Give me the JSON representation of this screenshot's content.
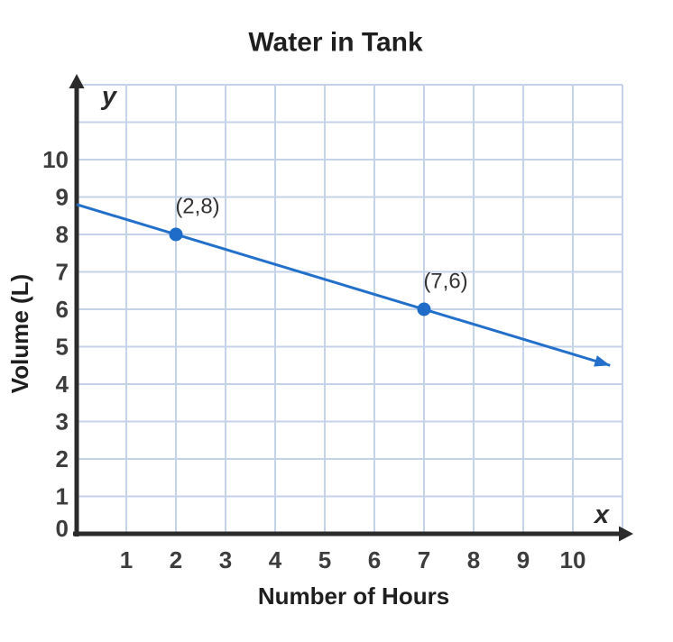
{
  "chart_data": {
    "type": "line",
    "title": "Water in Tank",
    "xlabel": "Number of Hours",
    "ylabel": "Volume (L)",
    "x_axis_letter": "x",
    "y_axis_letter": "y",
    "xlim": [
      0,
      11
    ],
    "ylim": [
      0,
      12
    ],
    "x_ticks": [
      1,
      2,
      3,
      4,
      5,
      6,
      7,
      8,
      9,
      10
    ],
    "y_ticks": [
      0,
      1,
      2,
      3,
      4,
      5,
      6,
      7,
      8,
      9,
      10
    ],
    "grid": true,
    "legend": "none",
    "line": {
      "start": [
        0,
        8.8
      ],
      "end": [
        10.75,
        4.5
      ],
      "slope": -0.4,
      "y_intercept": 8.8,
      "arrow_end": true
    },
    "points": [
      {
        "x": 2,
        "y": 8,
        "label": "(2,8)"
      },
      {
        "x": 7,
        "y": 6,
        "label": "(7,6)"
      }
    ],
    "colors": {
      "line": "#2270c9",
      "point": "#1e6bc8",
      "grid": "#c4d3e8",
      "axis": "#2b2b2b",
      "tick_text": "#3d3d3d",
      "label_text": "#333333",
      "title_text": "#1f1f1f",
      "background": "#ffffff"
    }
  }
}
